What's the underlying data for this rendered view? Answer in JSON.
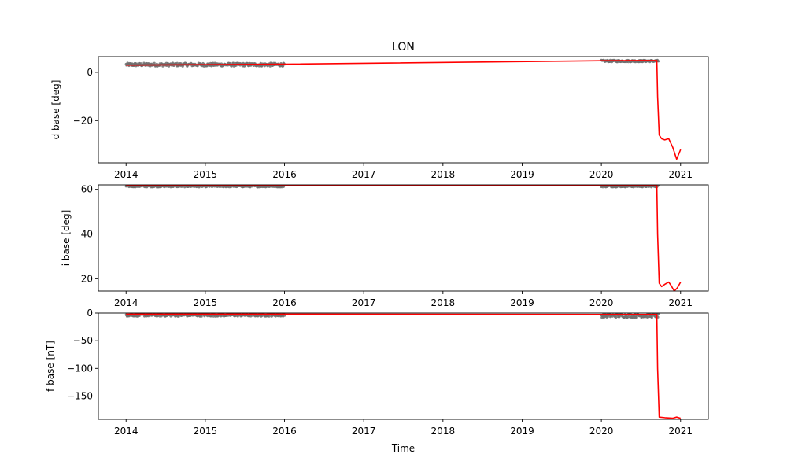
{
  "figure": {
    "title": "LON",
    "xlabel": "Time"
  },
  "colors": {
    "measured": "#6e6e6e",
    "baseline": "#ff0000",
    "axes": "#000000",
    "background": "#ffffff"
  },
  "chart_data": [
    {
      "type": "line",
      "title": "LON",
      "ylabel": "d base [deg]",
      "xlabel": "",
      "xlim": [
        2013.65,
        2021.35
      ],
      "ylim": [
        -37.5,
        6.5
      ],
      "xticks": [
        2014,
        2015,
        2016,
        2017,
        2018,
        2019,
        2020,
        2021
      ],
      "xtick_labels": [
        "2014",
        "2015",
        "2016",
        "2017",
        "2018",
        "2019",
        "2020",
        "2021"
      ],
      "yticks": [
        -20,
        0
      ],
      "ytick_labels": [
        "−20",
        "0"
      ],
      "grid": false,
      "series": [
        {
          "kind": "scatter",
          "color": "#6e6e6e",
          "segments": [
            {
              "x_start": 2014.0,
              "x_end": 2016.0,
              "y_min": 2.5,
              "y_max": 3.9
            },
            {
              "x_start": 2020.0,
              "x_end": 2020.72,
              "y_min": 4.3,
              "y_max": 5.1
            }
          ]
        },
        {
          "kind": "line",
          "color": "#ff0000",
          "x": [
            2014.0,
            2015.0,
            2016.0,
            2020.0,
            2020.5,
            2020.7,
            2020.71,
            2020.73,
            2020.76,
            2020.8,
            2020.85,
            2020.9,
            2020.95,
            2021.0
          ],
          "y": [
            3.0,
            3.2,
            3.4,
            4.8,
            4.9,
            4.9,
            -10.0,
            -26.0,
            -27.5,
            -28.0,
            -27.5,
            -31.0,
            -36.0,
            -32.0
          ]
        }
      ]
    },
    {
      "type": "line",
      "ylabel": "i base [deg]",
      "xlabel": "",
      "xlim": [
        2013.65,
        2021.35
      ],
      "ylim": [
        14.5,
        62.0
      ],
      "xticks": [
        2014,
        2015,
        2016,
        2017,
        2018,
        2019,
        2020,
        2021
      ],
      "xtick_labels": [
        "2014",
        "2015",
        "2016",
        "2017",
        "2018",
        "2019",
        "2020",
        "2021"
      ],
      "yticks": [
        20,
        40,
        60
      ],
      "ytick_labels": [
        "20",
        "40",
        "60"
      ],
      "grid": false,
      "series": [
        {
          "kind": "scatter",
          "color": "#6e6e6e",
          "segments": [
            {
              "x_start": 2014.0,
              "x_end": 2016.0,
              "y_min": 61.0,
              "y_max": 61.9
            },
            {
              "x_start": 2020.0,
              "x_end": 2020.72,
              "y_min": 61.0,
              "y_max": 61.9
            }
          ]
        },
        {
          "kind": "line",
          "color": "#ff0000",
          "x": [
            2014.0,
            2016.0,
            2020.0,
            2020.7,
            2020.71,
            2020.73,
            2020.76,
            2020.8,
            2020.85,
            2020.88,
            2020.92,
            2020.96,
            2021.0
          ],
          "y": [
            61.8,
            61.8,
            61.7,
            61.8,
            40.0,
            18.0,
            16.5,
            17.5,
            18.5,
            17.0,
            14.5,
            16.0,
            18.5
          ]
        }
      ]
    },
    {
      "type": "line",
      "ylabel": "f base [nT]",
      "xlabel": "Time",
      "xlim": [
        2013.65,
        2021.35
      ],
      "ylim": [
        -192.0,
        0.0
      ],
      "xticks": [
        2014,
        2015,
        2016,
        2017,
        2018,
        2019,
        2020,
        2021
      ],
      "xtick_labels": [
        "2014",
        "2015",
        "2016",
        "2017",
        "2018",
        "2019",
        "2020",
        "2021"
      ],
      "yticks": [
        -150,
        -100,
        -50,
        0
      ],
      "ytick_labels": [
        "−150",
        "−100",
        "−50",
        "0"
      ],
      "grid": false,
      "series": [
        {
          "kind": "scatter",
          "color": "#6e6e6e",
          "segments": [
            {
              "x_start": 2014.0,
              "x_end": 2016.0,
              "y_min": -6.0,
              "y_max": -1.0
            },
            {
              "x_start": 2020.0,
              "x_end": 2020.72,
              "y_min": -8.0,
              "y_max": -1.5
            }
          ]
        },
        {
          "kind": "line",
          "color": "#ff0000",
          "x": [
            2014.0,
            2016.0,
            2020.0,
            2020.7,
            2020.71,
            2020.73,
            2020.8,
            2020.9,
            2020.95,
            2021.0
          ],
          "y": [
            -2.0,
            -2.0,
            -2.5,
            -2.5,
            -100.0,
            -188.0,
            -189.0,
            -190.0,
            -188.0,
            -190.0
          ]
        }
      ]
    }
  ]
}
